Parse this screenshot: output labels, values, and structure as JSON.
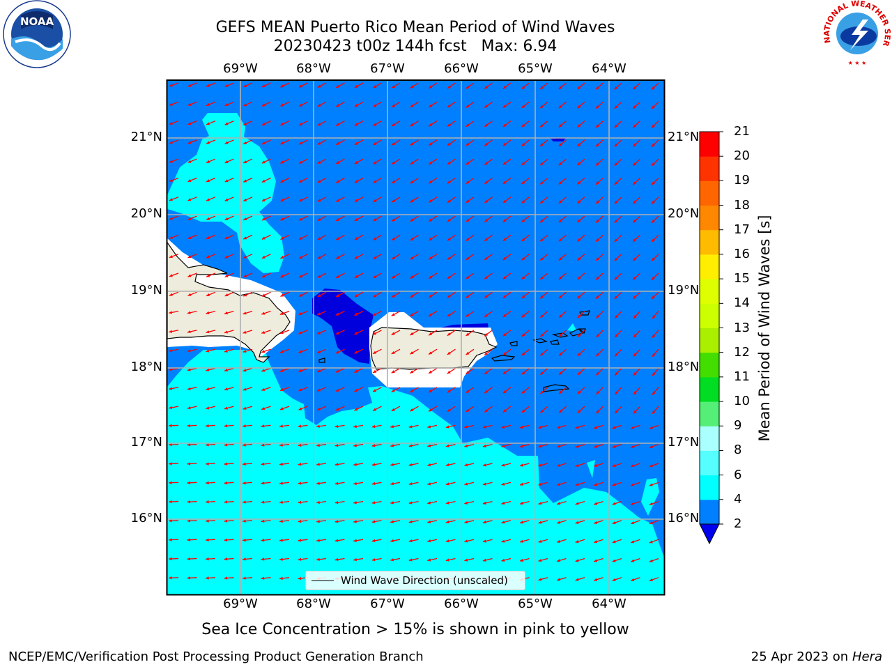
{
  "header": {
    "title_line1": "GEFS MEAN Puerto Rico Mean Period of Wind Waves",
    "title_line2": "20230423 t00z 144h fcst   Max: 6.94"
  },
  "logos": {
    "left": "NOAA",
    "right": "NATIONAL WEATHER SERVICE"
  },
  "map": {
    "lon_labels": [
      "69°W",
      "68°W",
      "67°W",
      "66°W",
      "65°W",
      "64°W"
    ],
    "lat_labels": [
      "21°N",
      "20°N",
      "19°N",
      "18°N",
      "17°N",
      "16°N"
    ],
    "lon_range": [
      -70,
      -63.25
    ],
    "lat_range": [
      15.05,
      21.75
    ],
    "legend_label": "Wind Wave Direction (unscaled)",
    "arrow_color": "#ff0000",
    "land_color": "#eeecdc",
    "colors": {
      "2-4": "#0080ff",
      "4-6": "#00ffff",
      "below-2": "#0000dd"
    }
  },
  "colorbar": {
    "title": "Mean Period of Wind Waves [s]",
    "tick_labels": [
      "2",
      "4",
      "6",
      "8",
      "9",
      "10",
      "11",
      "12",
      "13",
      "14",
      "15",
      "16",
      "17",
      "18",
      "19",
      "20",
      "21"
    ],
    "bins": [
      {
        "from": 2,
        "to": 4,
        "color": "#0080ff"
      },
      {
        "from": 4,
        "to": 6,
        "color": "#00ffff"
      },
      {
        "from": 6,
        "to": 8,
        "color": "#55ffff"
      },
      {
        "from": 8,
        "to": 9,
        "color": "#aaffff"
      },
      {
        "from": 9,
        "to": 10,
        "color": "#55ee77"
      },
      {
        "from": 10,
        "to": 11,
        "color": "#00dd22"
      },
      {
        "from": 11,
        "to": 12,
        "color": "#44dd00"
      },
      {
        "from": 12,
        "to": 13,
        "color": "#aaee00"
      },
      {
        "from": 13,
        "to": 14,
        "color": "#ccff00"
      },
      {
        "from": 14,
        "to": 15,
        "color": "#ddff00"
      },
      {
        "from": 15,
        "to": 16,
        "color": "#ffee00"
      },
      {
        "from": 16,
        "to": 17,
        "color": "#ffbb00"
      },
      {
        "from": 17,
        "to": 18,
        "color": "#ff8800"
      },
      {
        "from": 18,
        "to": 19,
        "color": "#ff6600"
      },
      {
        "from": 19,
        "to": 20,
        "color": "#ff3300"
      },
      {
        "from": 20,
        "to": 21,
        "color": "#ff0000"
      }
    ],
    "under_color": "#0000ee"
  },
  "footer": {
    "note": "Sea Ice Concentration > 15% is shown in pink to yellow",
    "credit_left": "NCEP/EMC/Verification Post Processing Product Generation Branch",
    "credit_right_date": "25 Apr 2023 on ",
    "credit_right_host": "Hera"
  }
}
